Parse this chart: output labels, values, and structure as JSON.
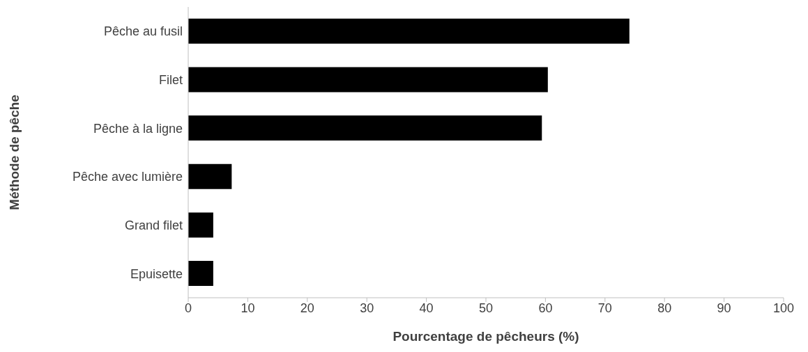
{
  "chart_data": {
    "type": "bar",
    "orientation": "horizontal",
    "xlabel": "Pourcentage de pêcheurs (%)",
    "ylabel": "Méthode de pêche",
    "categories": [
      "Pêche au fusil",
      "Filet",
      "Pêche à la ligne",
      "Pêche avec lumière",
      "Grand filet",
      "Epuisette"
    ],
    "values": [
      74.1,
      60.4,
      59.4,
      7.3,
      4.2,
      4.2
    ],
    "color": "#000000",
    "xlim": [
      0,
      100
    ],
    "xticks": [
      0,
      10,
      20,
      30,
      40,
      50,
      60,
      70,
      80,
      90,
      100
    ],
    "grid": false,
    "legend": false
  }
}
